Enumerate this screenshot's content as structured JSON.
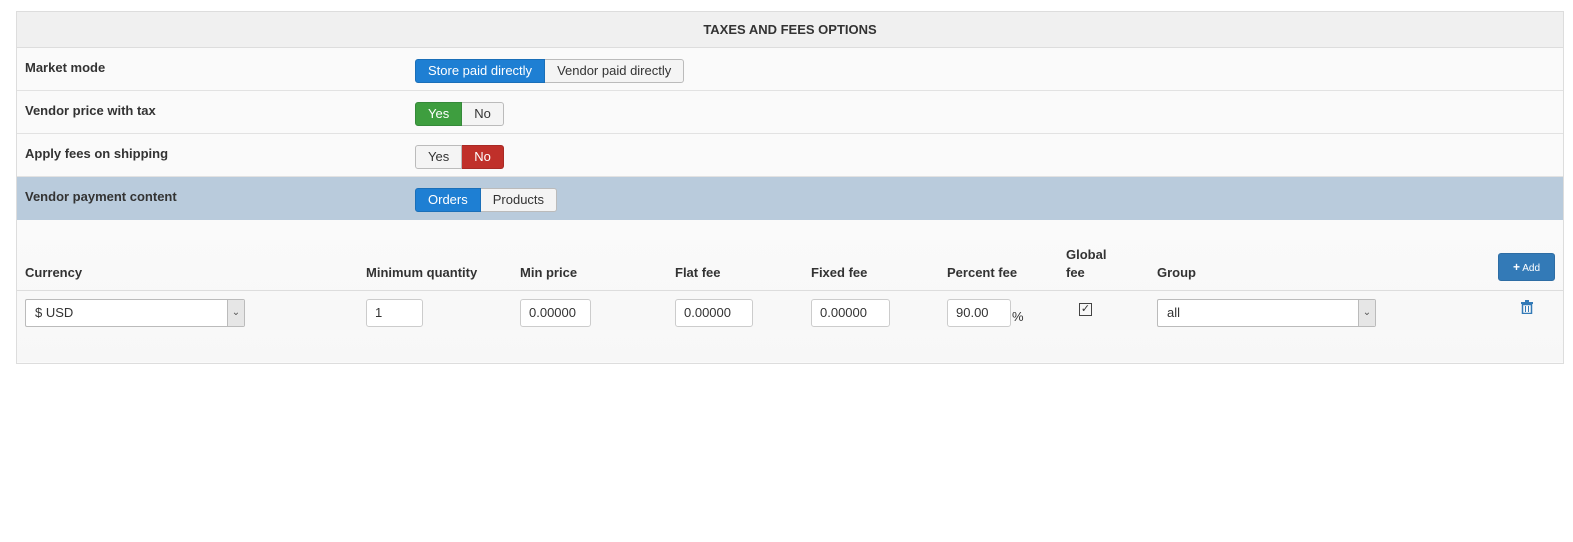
{
  "title": "TAXES AND FEES OPTIONS",
  "options": [
    {
      "label": "Market mode",
      "buttons": [
        "Store paid directly",
        "Vendor paid directly"
      ],
      "selected": 0
    },
    {
      "label": "Vendor price with tax",
      "buttons": [
        "Yes",
        "No"
      ],
      "selected": 0
    },
    {
      "label": "Apply fees on shipping",
      "buttons": [
        "Yes",
        "No"
      ],
      "selected": 1
    },
    {
      "label": "Vendor payment content",
      "buttons": [
        "Orders",
        "Products"
      ],
      "selected": 0
    }
  ],
  "table": {
    "headers": {
      "currency": "Currency",
      "min_qty": "Minimum quantity",
      "min_price": "Min price",
      "flat_fee": "Flat fee",
      "fixed_fee": "Fixed fee",
      "percent_fee": "Percent fee",
      "global_fee_1": "Global",
      "global_fee_2": "fee",
      "group": "Group"
    },
    "add_label": "Add",
    "row": {
      "currency": "$ USD",
      "min_qty": "1",
      "min_price": "0.00000",
      "flat_fee": "0.00000",
      "fixed_fee": "0.00000",
      "percent_fee": "90.00",
      "percent_unit": "%",
      "global_fee_checked": true,
      "group": "all"
    }
  },
  "colors": {
    "blue": "#1e7fd3",
    "green": "#3e9e3f",
    "red": "#c0302a",
    "highlight": "#b9cbdc",
    "add": "#337ab7"
  }
}
